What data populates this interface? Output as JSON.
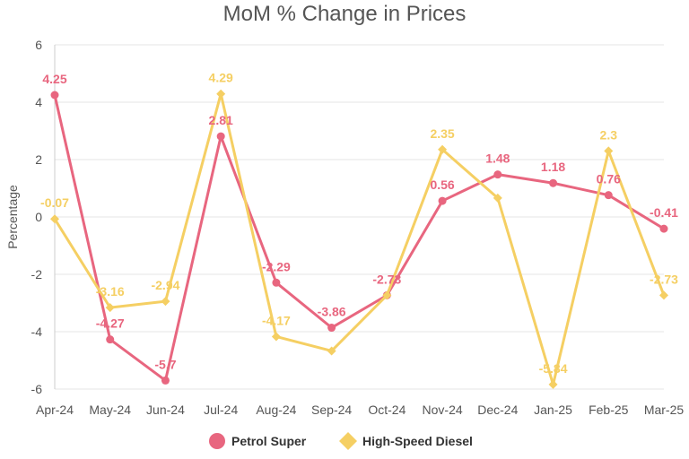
{
  "chart_data": {
    "type": "line",
    "title": "MoM % Change in Prices",
    "xlabel": "",
    "ylabel": "Percentage",
    "ylim": [
      -6,
      6
    ],
    "yticks": [
      6,
      4,
      2,
      0,
      -2,
      -4,
      -6
    ],
    "grid": true,
    "legend_position": "bottom",
    "categories": [
      "Apr-24",
      "May-24",
      "Jun-24",
      "Jul-24",
      "Aug-24",
      "Sep-24",
      "Oct-24",
      "Nov-24",
      "Dec-24",
      "Jan-25",
      "Feb-25",
      "Mar-25"
    ],
    "series": [
      {
        "name": "Petrol Super",
        "color": "#e8667f",
        "marker": "circle",
        "values": [
          4.25,
          -4.27,
          -5.7,
          2.81,
          -2.29,
          -3.86,
          -2.73,
          0.56,
          1.48,
          1.18,
          0.76,
          -0.41
        ]
      },
      {
        "name": "High-Speed Diesel",
        "color": "#f5cf63",
        "marker": "diamond",
        "values": [
          -0.07,
          -3.16,
          -2.94,
          4.29,
          -4.17,
          -4.67,
          -2.73,
          2.35,
          0.66,
          -5.84,
          2.3,
          -2.73
        ]
      }
    ],
    "data_labels": [
      [
        "4.25",
        "-4.27",
        "-5.7",
        "2.81",
        "-2.29",
        "-3.86",
        "-2.73",
        "0.56",
        "1.48",
        "1.18",
        "0.76",
        "-0.41"
      ],
      [
        "-0.07",
        "-3.16",
        "-2.94",
        "4.29",
        "-4.17",
        "",
        "",
        "2.35",
        "",
        "-5.84",
        "2.3",
        "-2.73"
      ]
    ]
  }
}
